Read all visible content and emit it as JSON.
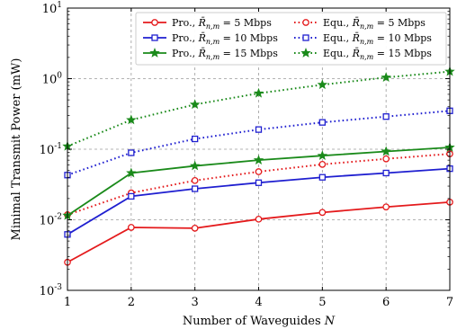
{
  "chart_data": {
    "type": "line",
    "xlabel": "Number of Waveguides N",
    "ylabel": "Minimal Transmit Power (mW)",
    "yscale": "log",
    "xlim": [
      1,
      7
    ],
    "ylim": [
      0.001,
      10
    ],
    "x": [
      1,
      2,
      3,
      4,
      5,
      6,
      7
    ],
    "x_ticks": [
      "1",
      "2",
      "3",
      "4",
      "5",
      "6",
      "7"
    ],
    "y_ticks": [
      "10^-3",
      "10^-2",
      "10^-1",
      "10^0",
      "10^1"
    ],
    "grid": true,
    "legend_position": "top",
    "series": [
      {
        "name": "Pro., R̄n,m = 5 Mbps",
        "color": "#e41a1c",
        "linestyle": "solid",
        "marker": "circle",
        "values": [
          0.0025,
          0.0078,
          0.0076,
          0.0102,
          0.0127,
          0.0152,
          0.0178
        ]
      },
      {
        "name": "Equ., R̄n,m = 5 Mbps",
        "color": "#e41a1c",
        "linestyle": "dotted",
        "marker": "circle",
        "values": [
          0.0118,
          0.024,
          0.036,
          0.048,
          0.061,
          0.073,
          0.086
        ]
      },
      {
        "name": "Pro., R̄n,m = 10 Mbps",
        "color": "#1f1fd0",
        "linestyle": "solid",
        "marker": "square",
        "values": [
          0.0062,
          0.0215,
          0.0275,
          0.0335,
          0.04,
          0.046,
          0.053
        ]
      },
      {
        "name": "Equ., R̄n,m = 10 Mbps",
        "color": "#1f1fd0",
        "linestyle": "dotted",
        "marker": "square",
        "values": [
          0.043,
          0.089,
          0.14,
          0.19,
          0.24,
          0.29,
          0.35
        ]
      },
      {
        "name": "Pro., R̄n,m = 15 Mbps",
        "color": "#1a8a1a",
        "linestyle": "solid",
        "marker": "star",
        "values": [
          0.0115,
          0.046,
          0.058,
          0.07,
          0.081,
          0.093,
          0.106
        ]
      },
      {
        "name": "Equ., R̄n,m = 15 Mbps",
        "color": "#1a8a1a",
        "linestyle": "dotted",
        "marker": "star",
        "values": [
          0.11,
          0.26,
          0.43,
          0.62,
          0.82,
          1.04,
          1.26
        ]
      }
    ],
    "legend": {
      "entries": [
        {
          "prefix": "Pro., ",
          "rate": "5 Mbps"
        },
        {
          "prefix": "Equ., ",
          "rate": "5 Mbps"
        },
        {
          "prefix": "Pro., ",
          "rate": "10 Mbps"
        },
        {
          "prefix": "Equ., ",
          "rate": "10 Mbps"
        },
        {
          "prefix": "Pro., ",
          "rate": "15 Mbps"
        },
        {
          "prefix": "Equ., ",
          "rate": "15 Mbps"
        }
      ]
    }
  }
}
